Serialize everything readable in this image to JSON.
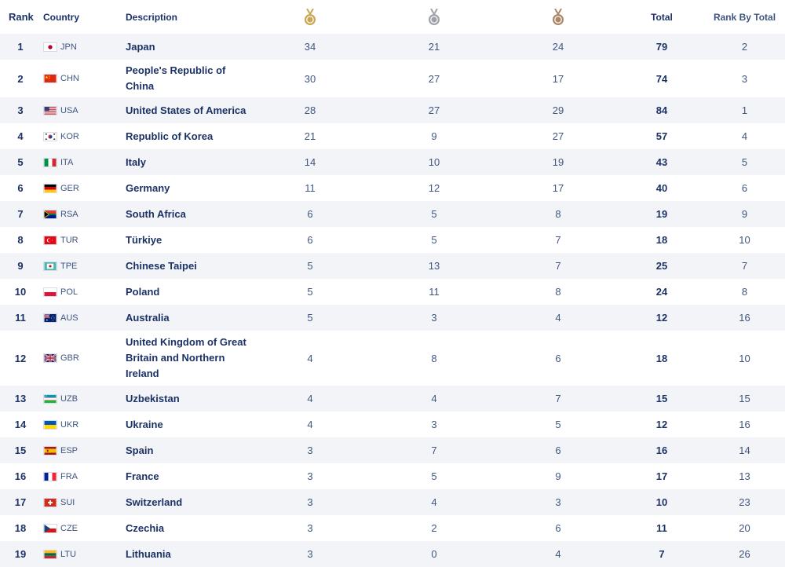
{
  "headers": {
    "rank": "Rank",
    "country": "Country",
    "description": "Description",
    "gold_icon": "gold-medal-icon",
    "silver_icon": "silver-medal-icon",
    "bronze_icon": "bronze-medal-icon",
    "total": "Total",
    "rank_by_total": "Rank By Total"
  },
  "colors": {
    "gold": "#c9a654",
    "silver": "#9ea3aa",
    "bronze": "#a98769",
    "text": "#1c3266",
    "row_alt": "#f2f4f7"
  },
  "rows": [
    {
      "rank": "1",
      "code": "JPN",
      "flag": "JPN",
      "name": "Japan",
      "gold": "34",
      "silver": "21",
      "bronze": "24",
      "total": "79",
      "rbt": "2"
    },
    {
      "rank": "2",
      "code": "CHN",
      "flag": "CHN",
      "name": "People's Republic of China",
      "gold": "30",
      "silver": "27",
      "bronze": "17",
      "total": "74",
      "rbt": "3"
    },
    {
      "rank": "3",
      "code": "USA",
      "flag": "USA",
      "name": "United States of America",
      "gold": "28",
      "silver": "27",
      "bronze": "29",
      "total": "84",
      "rbt": "1"
    },
    {
      "rank": "4",
      "code": "KOR",
      "flag": "KOR",
      "name": "Republic of Korea",
      "gold": "21",
      "silver": "9",
      "bronze": "27",
      "total": "57",
      "rbt": "4"
    },
    {
      "rank": "5",
      "code": "ITA",
      "flag": "ITA",
      "name": "Italy",
      "gold": "14",
      "silver": "10",
      "bronze": "19",
      "total": "43",
      "rbt": "5"
    },
    {
      "rank": "6",
      "code": "GER",
      "flag": "GER",
      "name": "Germany",
      "gold": "11",
      "silver": "12",
      "bronze": "17",
      "total": "40",
      "rbt": "6"
    },
    {
      "rank": "7",
      "code": "RSA",
      "flag": "RSA",
      "name": "South Africa",
      "gold": "6",
      "silver": "5",
      "bronze": "8",
      "total": "19",
      "rbt": "9"
    },
    {
      "rank": "8",
      "code": "TUR",
      "flag": "TUR",
      "name": "Türkiye",
      "gold": "6",
      "silver": "5",
      "bronze": "7",
      "total": "18",
      "rbt": "10"
    },
    {
      "rank": "9",
      "code": "TPE",
      "flag": "TPE",
      "name": "Chinese Taipei",
      "gold": "5",
      "silver": "13",
      "bronze": "7",
      "total": "25",
      "rbt": "7"
    },
    {
      "rank": "10",
      "code": "POL",
      "flag": "POL",
      "name": "Poland",
      "gold": "5",
      "silver": "11",
      "bronze": "8",
      "total": "24",
      "rbt": "8"
    },
    {
      "rank": "11",
      "code": "AUS",
      "flag": "AUS",
      "name": "Australia",
      "gold": "5",
      "silver": "3",
      "bronze": "4",
      "total": "12",
      "rbt": "16"
    },
    {
      "rank": "12",
      "code": "GBR",
      "flag": "GBR",
      "name": "United Kingdom of Great Britain and Northern Ireland",
      "gold": "4",
      "silver": "8",
      "bronze": "6",
      "total": "18",
      "rbt": "10"
    },
    {
      "rank": "13",
      "code": "UZB",
      "flag": "UZB",
      "name": "Uzbekistan",
      "gold": "4",
      "silver": "4",
      "bronze": "7",
      "total": "15",
      "rbt": "15"
    },
    {
      "rank": "14",
      "code": "UKR",
      "flag": "UKR",
      "name": "Ukraine",
      "gold": "4",
      "silver": "3",
      "bronze": "5",
      "total": "12",
      "rbt": "16"
    },
    {
      "rank": "15",
      "code": "ESP",
      "flag": "ESP",
      "name": "Spain",
      "gold": "3",
      "silver": "7",
      "bronze": "6",
      "total": "16",
      "rbt": "14"
    },
    {
      "rank": "16",
      "code": "FRA",
      "flag": "FRA",
      "name": "France",
      "gold": "3",
      "silver": "5",
      "bronze": "9",
      "total": "17",
      "rbt": "13"
    },
    {
      "rank": "17",
      "code": "SUI",
      "flag": "SUI",
      "name": "Switzerland",
      "gold": "3",
      "silver": "4",
      "bronze": "3",
      "total": "10",
      "rbt": "23"
    },
    {
      "rank": "18",
      "code": "CZE",
      "flag": "CZE",
      "name": "Czechia",
      "gold": "3",
      "silver": "2",
      "bronze": "6",
      "total": "11",
      "rbt": "20"
    },
    {
      "rank": "19",
      "code": "LTU",
      "flag": "LTU",
      "name": "Lithuania",
      "gold": "3",
      "silver": "0",
      "bronze": "4",
      "total": "7",
      "rbt": "26"
    }
  ]
}
